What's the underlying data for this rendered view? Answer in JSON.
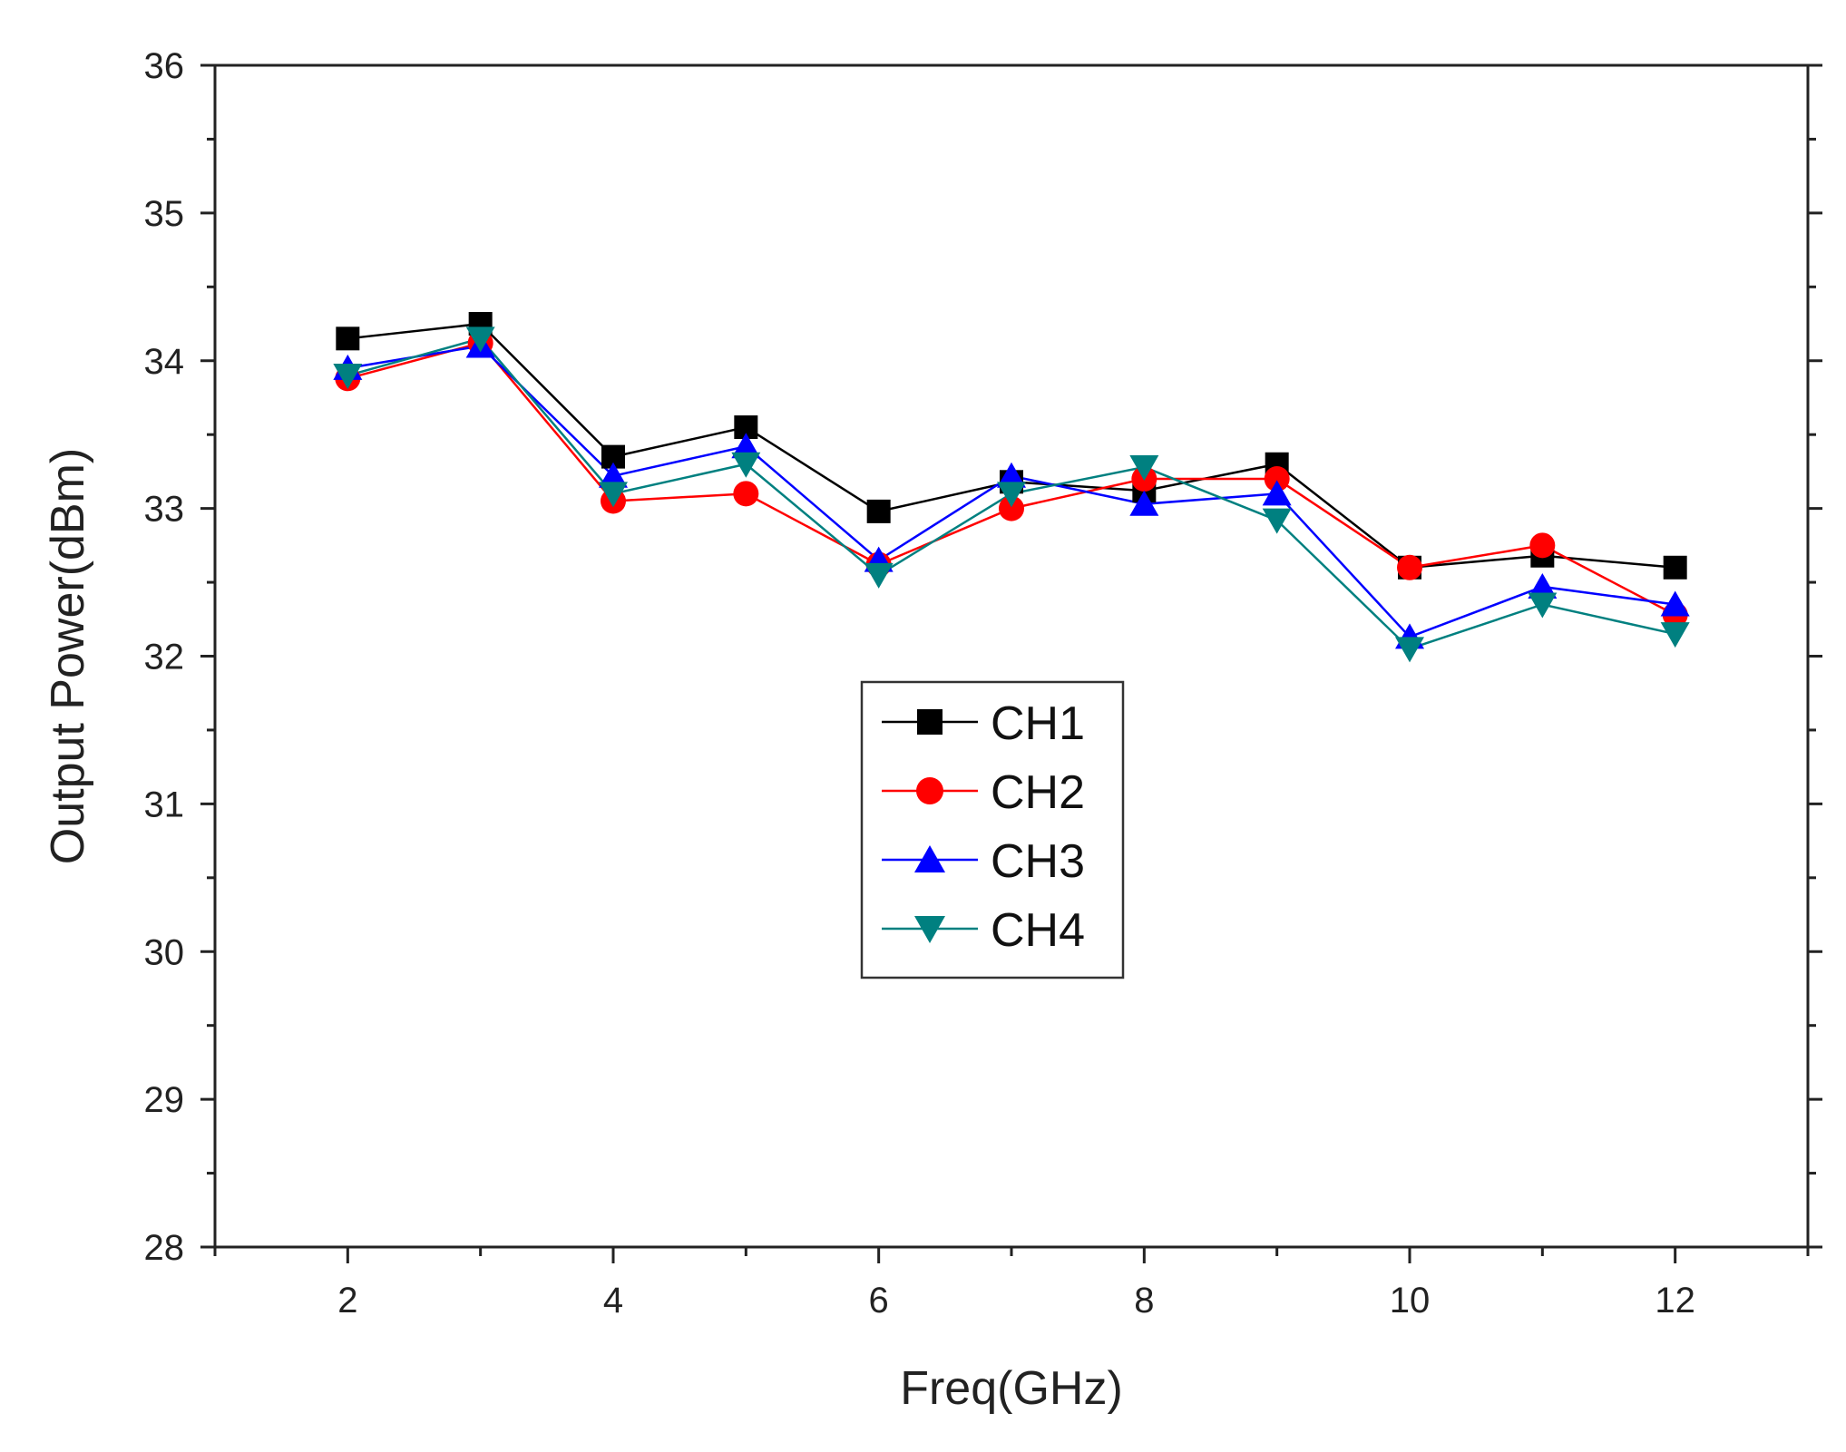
{
  "chart_data": {
    "type": "line",
    "title": "",
    "xlabel": "Freq(GHz)",
    "ylabel": "Output Power(dBm)",
    "xlim": [
      1,
      13
    ],
    "ylim": [
      28,
      36
    ],
    "xticks": [
      2,
      4,
      6,
      8,
      10,
      12
    ],
    "yticks": [
      28,
      29,
      30,
      31,
      32,
      33,
      34,
      35,
      36
    ],
    "grid": false,
    "legend_position": "center",
    "x": [
      2,
      3,
      4,
      5,
      6,
      7,
      8,
      9,
      10,
      11,
      12
    ],
    "series": [
      {
        "name": "CH1",
        "color": "#000000",
        "marker": "square",
        "values": [
          34.15,
          34.25,
          33.35,
          33.55,
          32.98,
          33.18,
          33.12,
          33.3,
          32.6,
          32.68,
          32.6
        ]
      },
      {
        "name": "CH2",
        "color": "#ff0000",
        "marker": "circle",
        "values": [
          33.88,
          34.12,
          33.05,
          33.1,
          32.62,
          33.0,
          33.2,
          33.2,
          32.6,
          32.75,
          32.28
        ]
      },
      {
        "name": "CH3",
        "color": "#0000ff",
        "marker": "triangle-up",
        "values": [
          33.95,
          34.1,
          33.22,
          33.42,
          32.65,
          33.22,
          33.03,
          33.1,
          32.13,
          32.47,
          32.35
        ]
      },
      {
        "name": "CH4",
        "color": "#008080",
        "marker": "triangle-down",
        "values": [
          33.9,
          34.15,
          33.1,
          33.3,
          32.55,
          33.1,
          33.28,
          32.92,
          32.05,
          32.35,
          32.15
        ]
      }
    ]
  }
}
